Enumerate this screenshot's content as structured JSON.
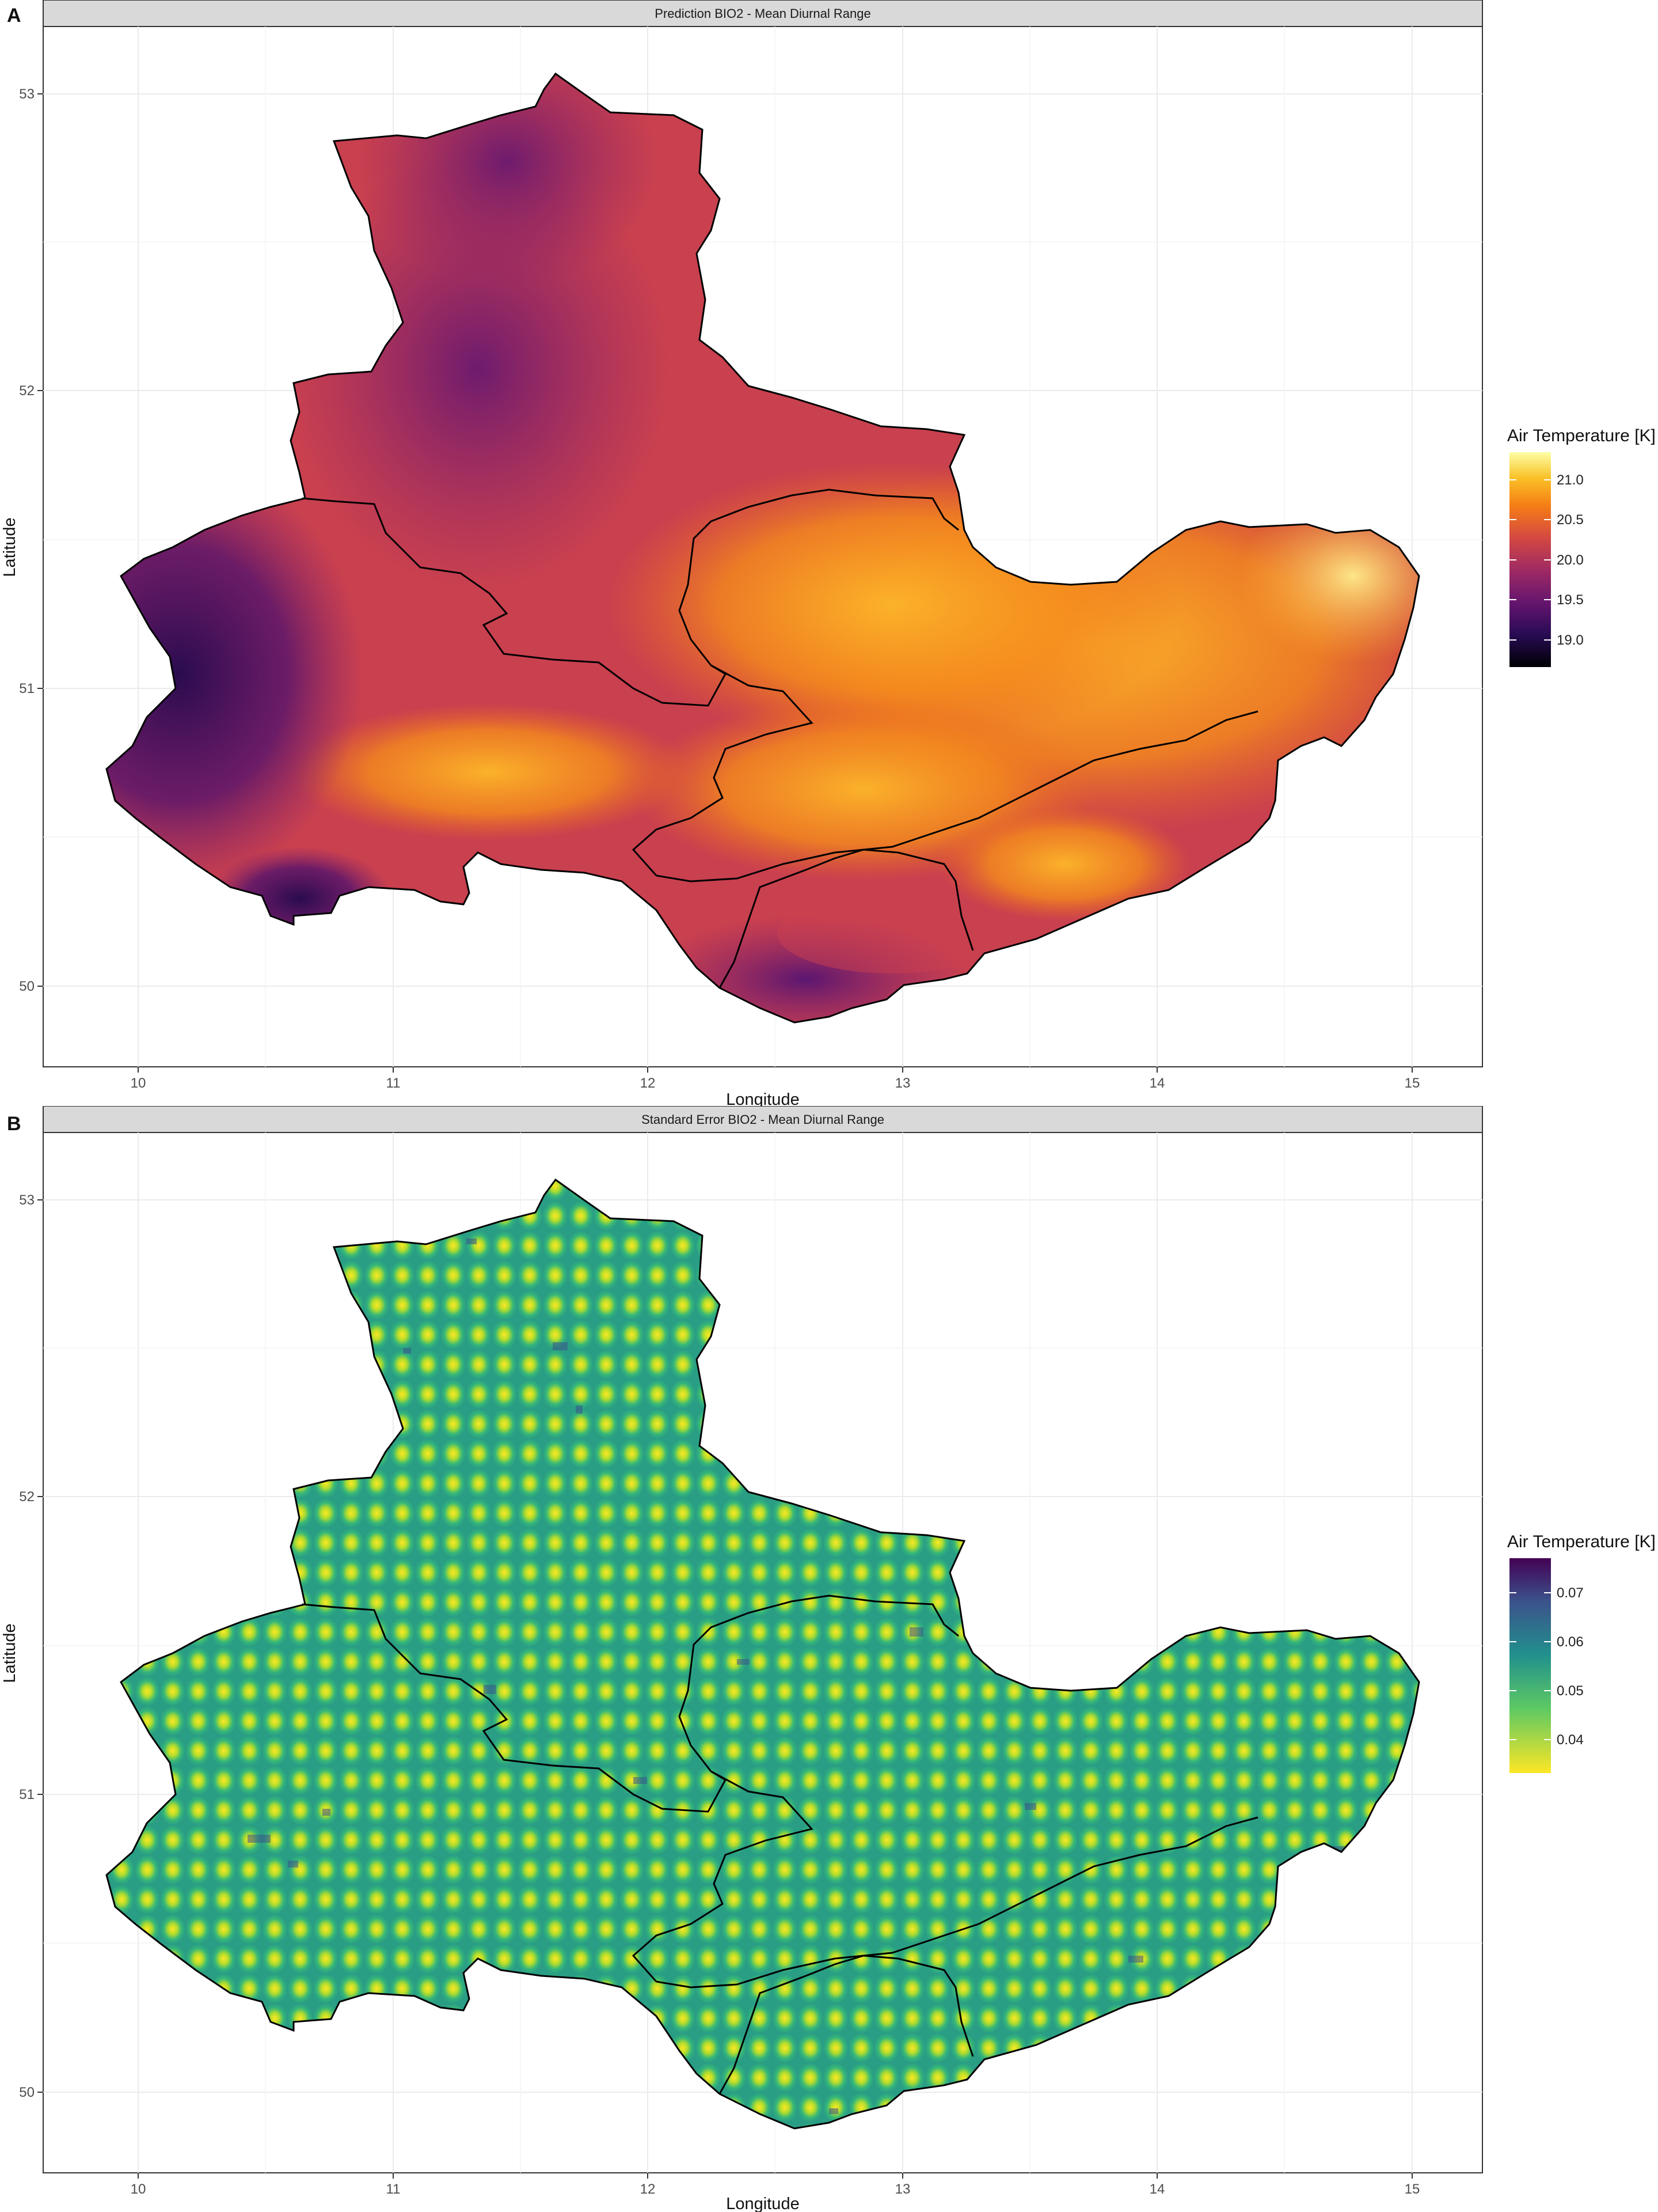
{
  "panels": [
    {
      "letter": "A",
      "strip_title": "Prediction BIO2 - Mean Diurnal Range",
      "xlabel": "Longitude",
      "ylabel": "Latitude",
      "x_ticks": [
        "10",
        "11",
        "12",
        "13",
        "14",
        "15"
      ],
      "y_ticks": [
        "50",
        "51",
        "52",
        "53"
      ],
      "legend": {
        "title": "Air Temperature [K]",
        "ticks": [
          "21.0",
          "20.5",
          "20.0",
          "19.5",
          "19.0"
        ],
        "colormap": "inferno"
      }
    },
    {
      "letter": "B",
      "strip_title": "Standard Error BIO2 - Mean Diurnal Range",
      "xlabel": "Longitude",
      "ylabel": "Latitude",
      "x_ticks": [
        "10",
        "11",
        "12",
        "13",
        "14",
        "15"
      ],
      "y_ticks": [
        "50",
        "51",
        "52",
        "53"
      ],
      "legend": {
        "title": "Air Temperature [K]",
        "ticks": [
          "0.07",
          "0.06",
          "0.05",
          "0.04"
        ],
        "colormap": "viridis reversed"
      }
    }
  ]
}
